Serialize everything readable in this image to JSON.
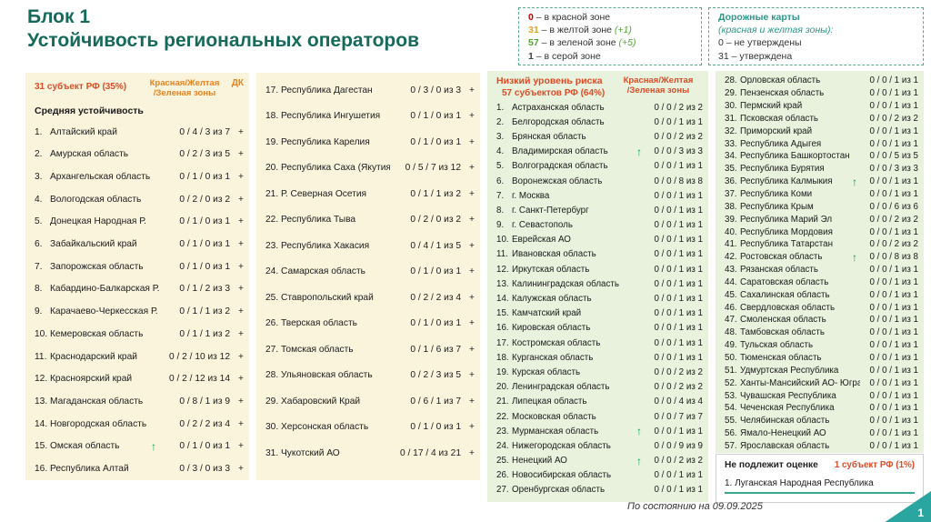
{
  "title": {
    "line1": "Блок 1",
    "line2": "Устойчивость региональных операторов"
  },
  "legend_zones": {
    "items": [
      {
        "value": "0",
        "color": "#c00000",
        "text": "– в красной зоне",
        "suffix": ""
      },
      {
        "value": "31",
        "color": "#e3a422",
        "text": "– в желтой зоне",
        "suffix": "(+1)"
      },
      {
        "value": "57",
        "color": "#4ea72e",
        "text": "– в зеленой зоне",
        "suffix": "(+5)"
      },
      {
        "value": "1",
        "color": "#3f3f3f",
        "text": "– в серой зоне",
        "suffix": ""
      }
    ]
  },
  "legend_roadmaps": {
    "title": "Дорожные карты",
    "subtitle": "(красная и желтая зоны):",
    "items": [
      "0 – не утверждены",
      "31 – утверждена"
    ]
  },
  "medium": {
    "count_label": "31 субъект РФ (35%)",
    "zones_header_line1": "Красная/Желтая",
    "zones_header_line2": "/Зеленая зоны",
    "dk_label": "ДК",
    "dk_value": "+",
    "subtitle": "Средняя устойчивость",
    "rows_a": [
      {
        "n": "1.",
        "name": "Алтайский край",
        "v": "0 / 4 / 3 из 7"
      },
      {
        "n": "2.",
        "name": "Амурская область",
        "v": "0 / 2 / 3 из 5"
      },
      {
        "n": "3.",
        "name": "Архангельская область",
        "v": "0 / 1 / 0 из 1"
      },
      {
        "n": "4.",
        "name": "Вологодская область",
        "v": "0 / 2 / 0 из 2"
      },
      {
        "n": "5.",
        "name": "Донецкая Народная Р.",
        "v": "0 / 1 / 0 из 1"
      },
      {
        "n": "6.",
        "name": "Забайкальский край",
        "v": "0 / 1 / 0 из 1"
      },
      {
        "n": "7.",
        "name": "Запорожская область",
        "v": "0 / 1 / 0 из 1"
      },
      {
        "n": "8.",
        "name": "Кабардино-Балкарская Р.",
        "v": "0 / 1 / 2 из 3"
      },
      {
        "n": "9.",
        "name": "Карачаево-Черкесская Р.",
        "v": "0 / 1 / 1 из 2"
      },
      {
        "n": "10.",
        "name": "Кемеровская область",
        "v": "0 / 1 / 1 из 2"
      },
      {
        "n": "11.",
        "name": "Краснодарский край",
        "v": "0 / 2 / 10 из 12"
      },
      {
        "n": "12.",
        "name": "Красноярский край",
        "v": "0 / 2 / 12 из 14"
      },
      {
        "n": "13.",
        "name": "Магаданская область",
        "v": "0 / 8 / 1 из 9"
      },
      {
        "n": "14.",
        "name": "Новгородская область",
        "v": "0 / 2 / 2 из 4"
      },
      {
        "n": "15.",
        "name": "Омская область",
        "v": "0 / 1 / 0 из 1",
        "up": true
      },
      {
        "n": "16.",
        "name": "Республика Алтай",
        "v": "0 / 3 / 0 из 3"
      }
    ],
    "rows_b": [
      {
        "n": "17.",
        "name": "Республика Дагестан",
        "v": "0 / 3 / 0 из 3"
      },
      {
        "n": "18.",
        "name": "Республика Ингушетия",
        "v": "0 / 1 / 0 из 1"
      },
      {
        "n": "19.",
        "name": "Республика Карелия",
        "v": "0 / 1 / 0 из 1"
      },
      {
        "n": "20.",
        "name": "Республика Саха (Якутия)",
        "v": "0 / 5 / 7 из 12"
      },
      {
        "n": "21.",
        "name": "Р. Северная Осетия",
        "v": "0 / 1 / 1 из 2"
      },
      {
        "n": "22.",
        "name": "Республика Тыва",
        "v": "0 / 2 / 0 из 2"
      },
      {
        "n": "23.",
        "name": "Республика Хакасия",
        "v": "0 / 4 / 1 из 5"
      },
      {
        "n": "24.",
        "name": "Самарская область",
        "v": "0 / 1 / 0 из 1"
      },
      {
        "n": "25.",
        "name": "Ставропольский край",
        "v": "0 / 2 / 2 из 4"
      },
      {
        "n": "26.",
        "name": "Тверская область",
        "v": "0 / 1 / 0 из 1"
      },
      {
        "n": "27.",
        "name": "Томская область",
        "v": "0 / 1 / 6 из 7"
      },
      {
        "n": "28.",
        "name": "Ульяновская область",
        "v": "0 / 2 / 3 из 5"
      },
      {
        "n": "29.",
        "name": "Хабаровский Край",
        "v": "0 / 6 / 1 из 7"
      },
      {
        "n": "30.",
        "name": "Херсонская область",
        "v": "0 / 1 / 0 из 1"
      },
      {
        "n": "31.",
        "name": "Чукотский АО",
        "v": "0 / 17 / 4 из 21"
      }
    ]
  },
  "low": {
    "title": "Низкий уровень риска",
    "count_label": "57 субъектов РФ (64%)",
    "zones_header_line1": "Красная/Желтая",
    "zones_header_line2": "/Зеленая зоны",
    "rows_a": [
      {
        "n": "1.",
        "name": "Астраханская область",
        "v": "0 / 0 / 2 из 2"
      },
      {
        "n": "2.",
        "name": "Белгородская область",
        "v": "0 / 0 / 1 из 1"
      },
      {
        "n": "3.",
        "name": "Брянская область",
        "v": "0 / 0 / 2 из 2"
      },
      {
        "n": "4.",
        "name": "Владимирская область",
        "v": "0 / 0 / 3 из 3",
        "up": true
      },
      {
        "n": "5.",
        "name": "Волгоградская область",
        "v": "0 / 0 / 1 из 1"
      },
      {
        "n": "6.",
        "name": "Воронежская область",
        "v": "0 / 0 / 8 из 8"
      },
      {
        "n": "7.",
        "name": "г. Москва",
        "v": "0 / 0 / 1 из 1"
      },
      {
        "n": "8.",
        "name": "г. Санкт-Петербург",
        "v": "0 / 0 / 1 из 1"
      },
      {
        "n": "9.",
        "name": "г. Севастополь",
        "v": "0 / 0 / 1 из 1"
      },
      {
        "n": "10.",
        "name": "Еврейская АО",
        "v": "0 / 0 / 1 из 1"
      },
      {
        "n": "11.",
        "name": "Ивановская область",
        "v": "0 / 0 / 1 из 1"
      },
      {
        "n": "12.",
        "name": "Иркутская область",
        "v": "0 / 0 / 1 из 1"
      },
      {
        "n": "13.",
        "name": "Калининградская область",
        "v": "0 / 0 / 1 из 1"
      },
      {
        "n": "14.",
        "name": "Калужская область",
        "v": "0 / 0 / 1 из 1"
      },
      {
        "n": "15.",
        "name": "Камчатский край",
        "v": "0 / 0 / 1 из 1"
      },
      {
        "n": "16.",
        "name": "Кировская область",
        "v": "0 / 0 / 1 из 1"
      },
      {
        "n": "17.",
        "name": "Костромская область",
        "v": "0 / 0 / 1 из 1"
      },
      {
        "n": "18.",
        "name": "Курганская область",
        "v": "0 / 0 / 1 из 1"
      },
      {
        "n": "19.",
        "name": "Курская область",
        "v": "0 / 0 / 2 из 2"
      },
      {
        "n": "20.",
        "name": "Ленинградская область",
        "v": "0 / 0 / 2 из 2"
      },
      {
        "n": "21.",
        "name": "Липецкая область",
        "v": "0 / 0 / 4 из 4"
      },
      {
        "n": "22.",
        "name": "Московская область",
        "v": "0 / 0 / 7 из 7"
      },
      {
        "n": "23.",
        "name": "Мурманская область",
        "v": "0 / 0 / 1 из 1",
        "up": true
      },
      {
        "n": "24.",
        "name": "Нижегородская область",
        "v": "0 / 0 / 9 из 9"
      },
      {
        "n": "25.",
        "name": "Ненецкий АО",
        "v": "0 / 0 / 2 из 2",
        "up": true
      },
      {
        "n": "26.",
        "name": "Новосибирская область",
        "v": "0 / 0 / 1 из 1"
      },
      {
        "n": "27.",
        "name": "Оренбургская область",
        "v": "0 / 0 / 1 из 1"
      }
    ],
    "rows_b": [
      {
        "n": "28.",
        "name": "Орловская область",
        "v": "0 / 0 / 1 из 1"
      },
      {
        "n": "29.",
        "name": "Пензенская область",
        "v": "0 / 0 / 1 из 1"
      },
      {
        "n": "30.",
        "name": "Пермский край",
        "v": "0 / 0 / 1 из 1"
      },
      {
        "n": "31.",
        "name": "Псковская область",
        "v": "0 / 0 / 2 из 2"
      },
      {
        "n": "32.",
        "name": "Приморский край",
        "v": "0 / 0 / 1 из 1"
      },
      {
        "n": "33.",
        "name": "Республика Адыгея",
        "v": "0 / 0 / 1 из 1"
      },
      {
        "n": "34.",
        "name": "Республика Башкортостан",
        "v": "0 / 0 / 5 из 5"
      },
      {
        "n": "35.",
        "name": "Республика Бурятия",
        "v": "0 / 0 / 3 из 3"
      },
      {
        "n": "36.",
        "name": "Республика Калмыкия",
        "v": "0 / 0 / 1 из 1",
        "up": true
      },
      {
        "n": "37.",
        "name": "Республика Коми",
        "v": "0 / 0 / 1 из 1"
      },
      {
        "n": "38.",
        "name": "Республика Крым",
        "v": "0 / 0 / 6 из 6"
      },
      {
        "n": "39.",
        "name": "Республика Марий Эл",
        "v": "0 / 0 / 2 из 2"
      },
      {
        "n": "40.",
        "name": "Республика Мордовия",
        "v": "0 / 0 / 1 из 1"
      },
      {
        "n": "41.",
        "name": "Республика Татарстан",
        "v": "0 / 0 / 2 из 2"
      },
      {
        "n": "42.",
        "name": "Ростовская область",
        "v": "0 / 0 / 8 из 8",
        "up": true
      },
      {
        "n": "43.",
        "name": "Рязанская область",
        "v": "0 / 0 / 1 из 1"
      },
      {
        "n": "44.",
        "name": "Саратовская область",
        "v": "0 / 0 / 1 из 1"
      },
      {
        "n": "45.",
        "name": "Сахалинская область",
        "v": "0 / 0 / 1 из 1"
      },
      {
        "n": "46.",
        "name": "Свердловская область",
        "v": "0 / 0 / 1 из 1"
      },
      {
        "n": "47.",
        "name": "Смоленская область",
        "v": "0 / 0 / 1 из 1"
      },
      {
        "n": "48.",
        "name": "Тамбовская область",
        "v": "0 / 0 / 1 из 1"
      },
      {
        "n": "49.",
        "name": "Тульская область",
        "v": "0 / 0 / 1 из 1"
      },
      {
        "n": "50.",
        "name": "Тюменская область",
        "v": "0 / 0 / 1 из 1"
      },
      {
        "n": "51.",
        "name": "Удмуртская Республика",
        "v": "0 / 0 / 1 из 1"
      },
      {
        "n": "52.",
        "name": "Ханты-Мансийский АО- Югра",
        "v": "0 / 0 / 1 из 1"
      },
      {
        "n": "53.",
        "name": "Чувашская Республика",
        "v": "0 / 0 / 1 из 1"
      },
      {
        "n": "54.",
        "name": "Чеченская Республика",
        "v": "0 / 0 / 1 из 1"
      },
      {
        "n": "55.",
        "name": "Челябинская область",
        "v": "0 / 0 / 1 из 1"
      },
      {
        "n": "56.",
        "name": "Ямало-Ненецкий АО",
        "v": "0 / 0 / 1 из 1"
      },
      {
        "n": "57.",
        "name": "Ярославская область",
        "v": "0 / 0 / 1 из 1"
      }
    ]
  },
  "not_assessed": {
    "title": "Не подлежит оценке",
    "count_label": "1 субъект РФ (1%)",
    "items": [
      "1. Луганская Народная Республика"
    ]
  },
  "footer": {
    "as_of": "По состоянию на  09.09.2025",
    "page": "1"
  }
}
